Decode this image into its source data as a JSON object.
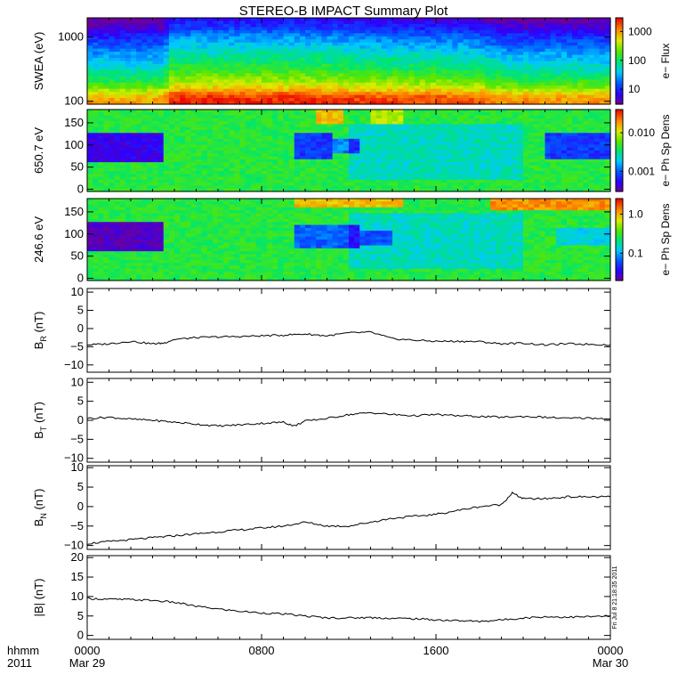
{
  "chart_data": {
    "title": "STEREO-B IMPACT Summary Plot",
    "time_axis": {
      "corner_label_top": "hhmm",
      "corner_label_bottom": "2011",
      "ticks": [
        {
          "t": 0,
          "label": "0000",
          "sublabel": "Mar 29"
        },
        {
          "t": 8,
          "label": "0800",
          "sublabel": ""
        },
        {
          "t": 16,
          "label": "1600",
          "sublabel": ""
        },
        {
          "t": 24,
          "label": "0000",
          "sublabel": "Mar 30"
        }
      ],
      "range_hours": [
        0,
        24
      ]
    },
    "stamp": "Fri Jul 8 21:18:35 2011",
    "panels": [
      {
        "id": "swea",
        "type": "heatmap",
        "ylabel": "SWEA (eV)",
        "yscale": "log",
        "ylim": [
          90,
          2000
        ],
        "yticks": [
          {
            "v": 100,
            "label": "100"
          },
          {
            "v": 1000,
            "label": "1000"
          }
        ],
        "colorbar": {
          "label": "e− Flux",
          "scale": "log",
          "range": [
            3,
            3000
          ],
          "ticks": [
            {
              "v": 10,
              "label": "10"
            },
            {
              "v": 100,
              "label": "100"
            },
            {
              "v": 1000,
              "label": "1000"
            }
          ]
        },
        "energy_profile": [
          {
            "e": 95,
            "v": 0.92
          },
          {
            "e": 120,
            "v": 0.88
          },
          {
            "e": 160,
            "v": 0.72
          },
          {
            "e": 220,
            "v": 0.6
          },
          {
            "e": 320,
            "v": 0.5
          },
          {
            "e": 480,
            "v": 0.42
          },
          {
            "e": 700,
            "v": 0.33
          },
          {
            "e": 1000,
            "v": 0.25
          },
          {
            "e": 1400,
            "v": 0.14
          },
          {
            "e": 2000,
            "v": 0.06
          }
        ],
        "time_modulation": [
          {
            "t": 0,
            "d": -0.08
          },
          {
            "t": 3.5,
            "d": -0.08
          },
          {
            "t": 3.9,
            "d": 0.06
          },
          {
            "t": 10,
            "d": 0.06
          },
          {
            "t": 12,
            "d": 0.04
          },
          {
            "t": 18,
            "d": 0.0
          },
          {
            "t": 19,
            "d": -0.06
          },
          {
            "t": 24,
            "d": -0.07
          }
        ]
      },
      {
        "id": "pad650",
        "type": "heatmap",
        "ylabel": "650.7 eV",
        "yscale": "linear",
        "ylim": [
          -5,
          180
        ],
        "yticks": [
          {
            "v": 0,
            "label": "0"
          },
          {
            "v": 50,
            "label": "50"
          },
          {
            "v": 100,
            "label": "100"
          },
          {
            "v": 150,
            "label": "150"
          }
        ],
        "colorbar": {
          "label": "e− Ph Sp Dens",
          "scale": "log",
          "range": [
            0.0003,
            0.04
          ],
          "ticks": [
            {
              "v": 0.001,
              "label": "0.001"
            },
            {
              "v": 0.01,
              "label": "0.010"
            }
          ]
        },
        "base_level": 0.55,
        "features": [
          {
            "t0": 0,
            "t1": 3.6,
            "a0": 60,
            "a1": 130,
            "d": -0.45
          },
          {
            "t0": 9.6,
            "t1": 11.2,
            "a0": 65,
            "a1": 125,
            "d": -0.35
          },
          {
            "t0": 11.2,
            "t1": 12.6,
            "a0": 80,
            "a1": 115,
            "d": -0.25
          },
          {
            "t0": 21,
            "t1": 24,
            "a0": 70,
            "a1": 125,
            "d": -0.35
          },
          {
            "t0": 10.6,
            "t1": 11.8,
            "a0": 150,
            "a1": 180,
            "d": 0.25
          },
          {
            "t0": 13,
            "t1": 14.5,
            "a0": 150,
            "a1": 180,
            "d": 0.15
          }
        ]
      },
      {
        "id": "pad246",
        "type": "heatmap",
        "ylabel": "246.6 eV",
        "yscale": "linear",
        "ylim": [
          -5,
          180
        ],
        "yticks": [
          {
            "v": 0,
            "label": "0"
          },
          {
            "v": 50,
            "label": "50"
          },
          {
            "v": 100,
            "label": "100"
          },
          {
            "v": 150,
            "label": "150"
          }
        ],
        "colorbar": {
          "label": "e− Ph Sp Dens",
          "scale": "log",
          "range": [
            0.02,
            2.5
          ],
          "ticks": [
            {
              "v": 0.1,
              "label": "0.1"
            },
            {
              "v": 1.0,
              "label": "1.0"
            }
          ]
        },
        "base_level": 0.55,
        "features": [
          {
            "t0": 0,
            "t1": 3.6,
            "a0": 60,
            "a1": 130,
            "d": -0.5
          },
          {
            "t0": 9.4,
            "t1": 12.4,
            "a0": 65,
            "a1": 120,
            "d": -0.3
          },
          {
            "t0": 12.4,
            "t1": 14.0,
            "a0": 75,
            "a1": 110,
            "d": -0.2
          },
          {
            "t0": 21.5,
            "t1": 24,
            "a0": 75,
            "a1": 115,
            "d": -0.15
          },
          {
            "t0": 9.5,
            "t1": 14.5,
            "a0": 160,
            "a1": 180,
            "d": 0.25
          },
          {
            "t0": 18.5,
            "t1": 24,
            "a0": 155,
            "a1": 180,
            "d": 0.3
          }
        ]
      },
      {
        "id": "br",
        "type": "line",
        "ylabel": "B",
        "ylabel_sub": "R",
        "ylabel_unit": " (nT)",
        "ylim": [
          -12,
          11
        ],
        "yticks": [
          {
            "v": -10,
            "label": "−10"
          },
          {
            "v": -5,
            "label": "−5"
          },
          {
            "v": 0,
            "label": "0"
          },
          {
            "v": 5,
            "label": "5"
          },
          {
            "v": 10,
            "label": "10"
          }
        ],
        "x": [
          0,
          1,
          2,
          3,
          3.5,
          4,
          5,
          6,
          7,
          8,
          9,
          10,
          11,
          12,
          13,
          14,
          15,
          16,
          17,
          18,
          19,
          20,
          21,
          22,
          23,
          24
        ],
        "y": [
          -4.5,
          -4.2,
          -3.5,
          -4.2,
          -4.0,
          -3.0,
          -2.5,
          -2.3,
          -2.2,
          -2.0,
          -1.8,
          -1.5,
          -2.0,
          -1.2,
          -1.0,
          -2.8,
          -3.2,
          -3.5,
          -3.5,
          -3.6,
          -4.2,
          -4.0,
          -4.5,
          -4.2,
          -4.3,
          -4.5
        ]
      },
      {
        "id": "bt",
        "type": "line",
        "ylabel": "B",
        "ylabel_sub": "T",
        "ylabel_unit": " (nT)",
        "ylim": [
          -11,
          11
        ],
        "yticks": [
          {
            "v": -10,
            "label": "−10"
          },
          {
            "v": -5,
            "label": "−5"
          },
          {
            "v": 0,
            "label": "0"
          },
          {
            "v": 5,
            "label": "5"
          },
          {
            "v": 10,
            "label": "10"
          }
        ],
        "x": [
          0,
          1,
          2,
          3,
          4,
          5,
          6,
          7,
          8,
          9,
          9.5,
          10,
          11,
          12,
          13,
          14,
          15,
          16,
          17,
          18,
          19,
          20,
          21,
          22,
          23,
          24
        ],
        "y": [
          0.5,
          0.8,
          0.3,
          0.0,
          -0.5,
          -1.0,
          -1.5,
          -1.2,
          -0.8,
          -0.5,
          -1.5,
          -0.2,
          0.5,
          1.5,
          2.0,
          1.5,
          1.2,
          1.5,
          1.2,
          1.0,
          0.8,
          1.0,
          0.8,
          0.5,
          0.6,
          0.4
        ]
      },
      {
        "id": "bn",
        "type": "line",
        "ylabel": "B",
        "ylabel_sub": "N",
        "ylabel_unit": " (nT)",
        "ylim": [
          -11,
          10.5
        ],
        "yticks": [
          {
            "v": -10,
            "label": "−10"
          },
          {
            "v": -5,
            "label": "−5"
          },
          {
            "v": 0,
            "label": "0"
          },
          {
            "v": 5,
            "label": "5"
          },
          {
            "v": 10,
            "label": "10"
          }
        ],
        "x": [
          0,
          1,
          2,
          3,
          4,
          5,
          6,
          7,
          8,
          9,
          10,
          11,
          12,
          13,
          14,
          15,
          16,
          17,
          18,
          19,
          19.5,
          20,
          21,
          22,
          23,
          24
        ],
        "y": [
          -9.5,
          -9.0,
          -8.5,
          -8.0,
          -7.5,
          -7.0,
          -6.5,
          -6.0,
          -5.5,
          -5.0,
          -4.0,
          -5.0,
          -5.0,
          -4.0,
          -3.0,
          -2.5,
          -2.0,
          -1.0,
          0.0,
          0.5,
          3.5,
          2.0,
          2.0,
          2.5,
          2.5,
          2.5
        ]
      },
      {
        "id": "bmag",
        "type": "line",
        "ylabel": "|B| (nT)",
        "ylabel_sub": "",
        "ylabel_unit": "",
        "ylim": [
          -1,
          20.5
        ],
        "yticks": [
          {
            "v": 0,
            "label": "0"
          },
          {
            "v": 5,
            "label": "5"
          },
          {
            "v": 10,
            "label": "10"
          },
          {
            "v": 15,
            "label": "15"
          },
          {
            "v": 20,
            "label": "20"
          }
        ],
        "x": [
          0,
          1,
          2,
          3,
          4,
          5,
          6,
          7,
          8,
          9,
          10,
          11,
          12,
          13,
          14,
          15,
          16,
          17,
          18,
          19,
          20,
          21,
          22,
          23,
          24
        ],
        "y": [
          9.5,
          9.3,
          9.2,
          9.0,
          8.5,
          7.5,
          6.8,
          6.2,
          5.8,
          5.5,
          5.0,
          4.5,
          4.5,
          4.6,
          4.4,
          4.3,
          4.0,
          3.8,
          3.6,
          4.0,
          4.5,
          4.8,
          4.7,
          4.8,
          5.0
        ]
      }
    ]
  }
}
